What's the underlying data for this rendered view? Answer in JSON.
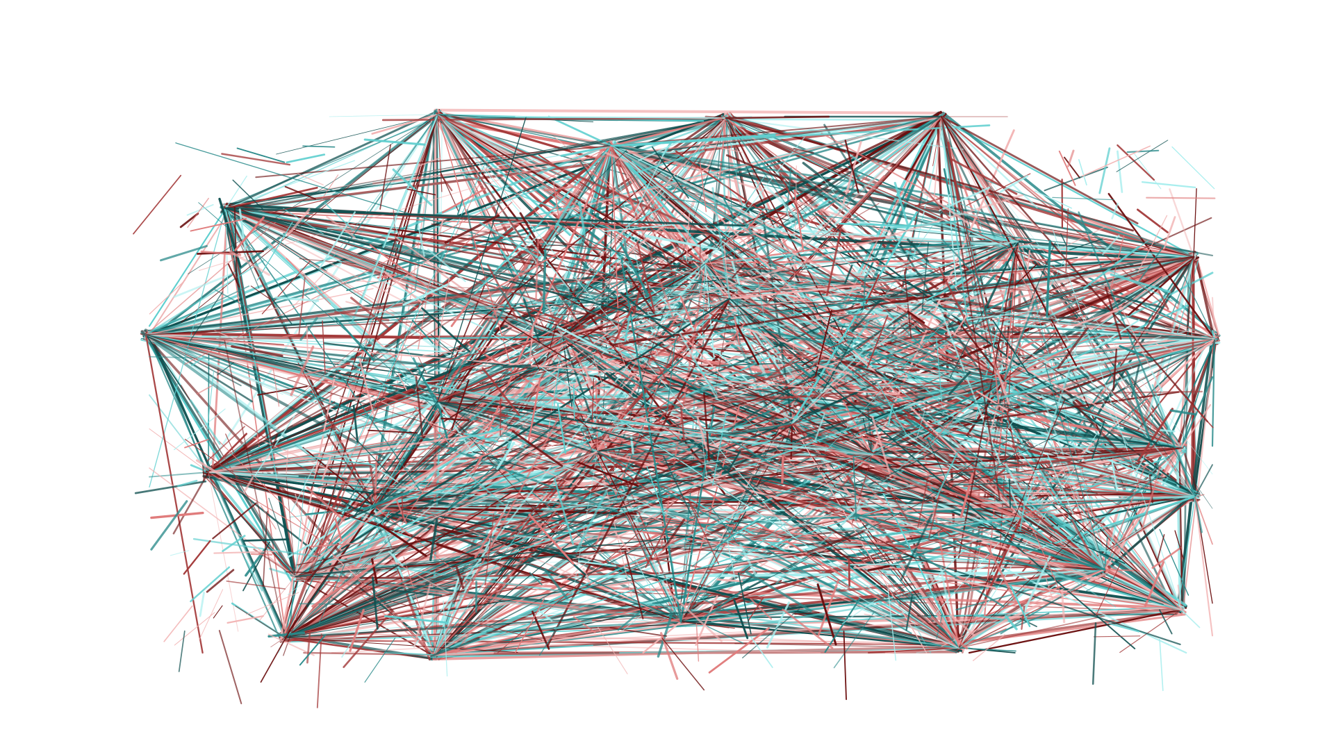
{
  "diagram": {
    "type": "dense-network",
    "background": "#ffffff",
    "palette": {
      "dark_red": "#6b0f0f",
      "red": "#a33a3a",
      "salmon": "#e07c7c",
      "light_pink": "#f2b3b3",
      "dark_teal": "#0f4f4f",
      "teal": "#2a8a8a",
      "aqua": "#5fcfcf",
      "light_aqua": "#a8eeee"
    },
    "legend": null,
    "labels": []
  }
}
